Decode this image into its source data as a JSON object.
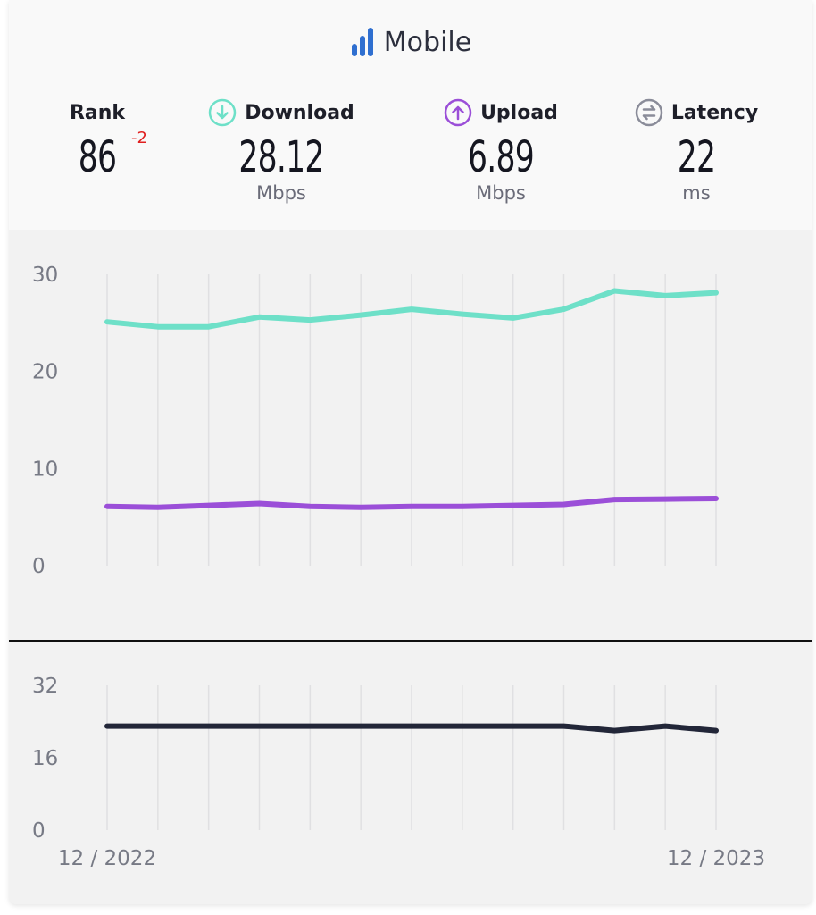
{
  "title": "Mobile",
  "metrics": {
    "rank": {
      "label": "Rank",
      "value": "86",
      "change": "-2"
    },
    "download": {
      "label": "Download",
      "value": "28.12",
      "unit": "Mbps",
      "color": "#6ee0c8"
    },
    "upload": {
      "label": "Upload",
      "value": "6.89",
      "unit": "Mbps",
      "color": "#9b4fd8"
    },
    "latency": {
      "label": "Latency",
      "value": "22",
      "unit": "ms",
      "color": "#8a8c99"
    }
  },
  "colors": {
    "title_icon": "#2f6fd0",
    "download_line": "#6ee0c8",
    "upload_line": "#9b4fd8",
    "latency_line": "#222638",
    "grid": "#e0e0e2"
  },
  "chart_data": [
    {
      "type": "line",
      "x_count": 13,
      "ylim": [
        0,
        30
      ],
      "yticks": [
        0,
        10,
        20,
        30
      ],
      "series": [
        {
          "name": "Download",
          "color": "#6ee0c8",
          "values": [
            25.1,
            24.6,
            24.6,
            25.6,
            25.3,
            25.8,
            26.4,
            25.9,
            25.5,
            26.4,
            28.3,
            27.8,
            28.1
          ]
        },
        {
          "name": "Upload",
          "color": "#9b4fd8",
          "values": [
            6.1,
            6.0,
            6.2,
            6.4,
            6.1,
            6.0,
            6.1,
            6.1,
            6.2,
            6.3,
            6.8,
            6.85,
            6.9
          ]
        }
      ]
    },
    {
      "type": "line",
      "x_count": 13,
      "ylim": [
        0,
        32
      ],
      "yticks": [
        0,
        16,
        32
      ],
      "xtick_labels": [
        "12 / 2022",
        "12 / 2023"
      ],
      "series": [
        {
          "name": "Latency",
          "color": "#222638",
          "values": [
            23,
            23,
            23,
            23,
            23,
            23,
            23,
            23,
            23,
            23,
            22,
            23,
            22
          ]
        }
      ]
    }
  ]
}
